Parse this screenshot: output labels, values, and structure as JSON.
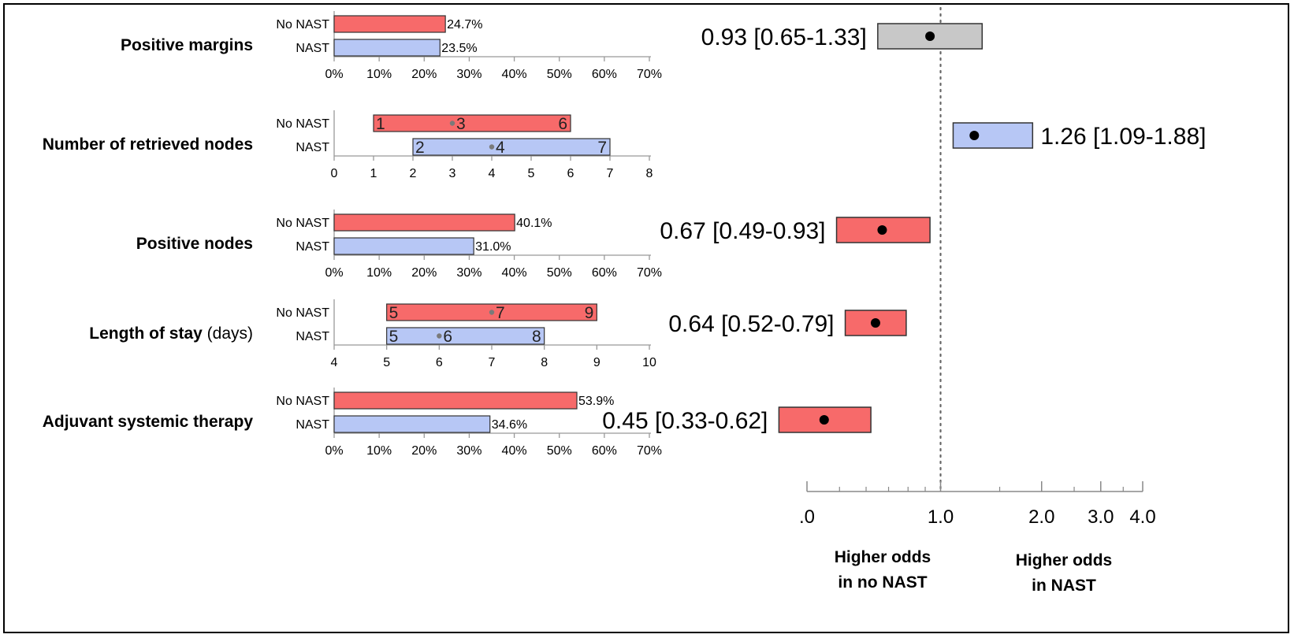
{
  "colors": {
    "no_nast": "#f76a6a",
    "nast": "#b7c7f5",
    "neutral": "#c8c8c8",
    "border": "#333333"
  },
  "chart_data": [
    {
      "type": "bar",
      "title": "Positive margins",
      "subtitle": "",
      "categories": [
        "No NAST",
        "NAST"
      ],
      "values": [
        24.7,
        23.5
      ],
      "value_labels": [
        "24.7%",
        "23.5%"
      ],
      "xlim": [
        0,
        70
      ],
      "ticks": [
        "0%",
        "10%",
        "20%",
        "30%",
        "40%",
        "50%",
        "60%",
        "70%"
      ]
    },
    {
      "type": "bar",
      "title": "Number of retrieved nodes",
      "subtitle": "",
      "categories": [
        "No NAST",
        "NAST"
      ],
      "ranges": [
        {
          "low": 1,
          "median": 3,
          "high": 6
        },
        {
          "low": 2,
          "median": 4,
          "high": 7
        }
      ],
      "range_labels": [
        [
          "1",
          "3",
          "6"
        ],
        [
          "2",
          "4",
          "7"
        ]
      ],
      "xlim": [
        0,
        8
      ],
      "ticks": [
        "0",
        "1",
        "2",
        "3",
        "4",
        "5",
        "6",
        "7",
        "8"
      ]
    },
    {
      "type": "bar",
      "title": "Positive nodes",
      "subtitle": "",
      "categories": [
        "No NAST",
        "NAST"
      ],
      "values": [
        40.1,
        31.0
      ],
      "value_labels": [
        "40.1%",
        "31.0%"
      ],
      "xlim": [
        0,
        70
      ],
      "ticks": [
        "0%",
        "10%",
        "20%",
        "30%",
        "40%",
        "50%",
        "60%",
        "70%"
      ]
    },
    {
      "type": "bar",
      "title": "Length of stay",
      "subtitle": "(days)",
      "categories": [
        "No NAST",
        "NAST"
      ],
      "ranges": [
        {
          "low": 5,
          "median": 7,
          "high": 9
        },
        {
          "low": 5,
          "median": 6,
          "high": 8
        }
      ],
      "range_labels": [
        [
          "5",
          "7",
          "9"
        ],
        [
          "5",
          "6",
          "8"
        ]
      ],
      "xlim": [
        4,
        10
      ],
      "ticks": [
        "4",
        "5",
        "6",
        "7",
        "8",
        "9",
        "10"
      ]
    },
    {
      "type": "bar",
      "title": "Adjuvant systemic therapy",
      "subtitle": "",
      "categories": [
        "No NAST",
        "NAST"
      ],
      "values": [
        53.9,
        34.6
      ],
      "value_labels": [
        "53.9%",
        "34.6%"
      ],
      "xlim": [
        0,
        70
      ],
      "ticks": [
        "0%",
        "10%",
        "20%",
        "30%",
        "40%",
        "50%",
        "60%",
        "70%"
      ]
    },
    {
      "type": "scatter",
      "scale": "log",
      "reference": 1.0,
      "ticks": [
        ".0",
        "1.0",
        "2.0",
        "3.0",
        "4.0"
      ],
      "points": [
        {
          "or": 0.93,
          "low": 0.65,
          "high": 1.33,
          "label": "0.93 [0.65-1.33]",
          "color": "neutral",
          "label_side": "left"
        },
        {
          "or": 1.26,
          "low": 1.09,
          "high": 1.88,
          "label": "1.26 [1.09-1.88]",
          "color": "nast",
          "label_side": "right"
        },
        {
          "or": 0.67,
          "low": 0.49,
          "high": 0.93,
          "label": "0.67 [0.49-0.93]",
          "color": "no_nast",
          "label_side": "left"
        },
        {
          "or": 0.64,
          "low": 0.52,
          "high": 0.79,
          "label": "0.64 [0.52-0.79]",
          "color": "no_nast",
          "label_side": "left"
        },
        {
          "or": 0.45,
          "low": 0.33,
          "high": 0.62,
          "label": "0.45 [0.33-0.62]",
          "color": "no_nast",
          "label_side": "left"
        }
      ],
      "captions": [
        [
          "Higher odds",
          "in no NAST"
        ],
        [
          "Higher odds",
          "in NAST"
        ]
      ]
    }
  ]
}
